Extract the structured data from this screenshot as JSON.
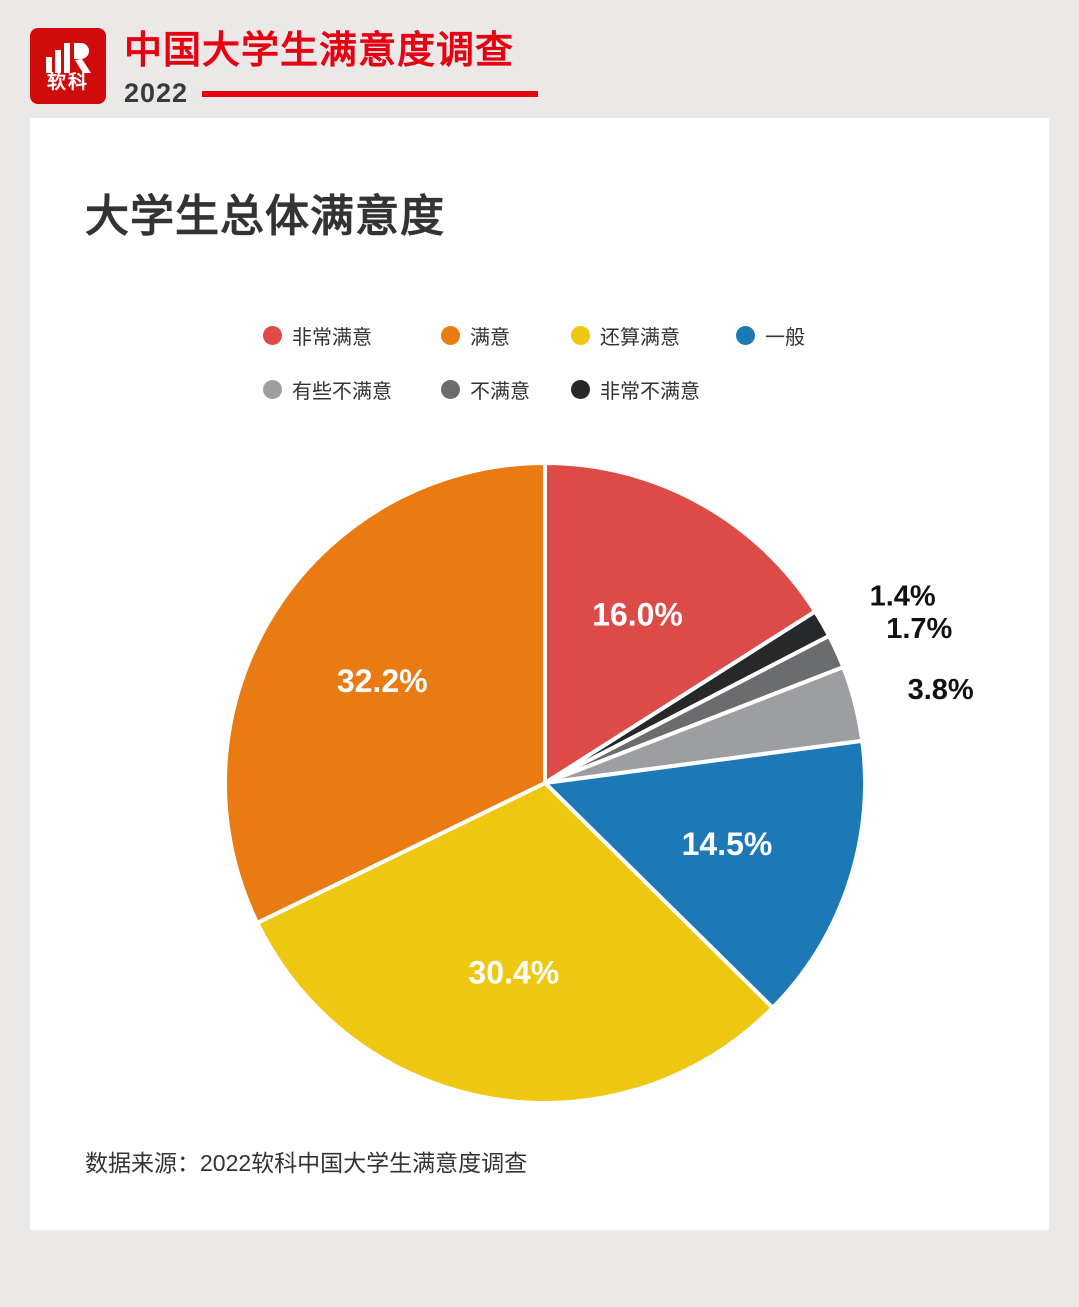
{
  "header": {
    "logo_text": "软科",
    "title": "中国大学生满意度调查",
    "year": "2022"
  },
  "chart_title": "大学生总体满意度",
  "footer": {
    "source": "数据来源：2022软科中国大学生满意度调查"
  },
  "colors": {
    "brand_red": "#e60012",
    "logo_red": "#cf0b0b",
    "page_bg": "#eae9e7",
    "card_bg": "#ffffff",
    "text_dark": "#333333"
  },
  "chart_data": {
    "type": "pie",
    "title": "大学生总体满意度",
    "unit": "%",
    "direction": "clockwise",
    "start_angle": "top",
    "legend_position": "top",
    "slices": [
      {
        "label": "非常满意",
        "value": 16.0,
        "display": "16.0%",
        "color": "#dd4b48",
        "label_placement": "inside"
      },
      {
        "label": "非常不满意",
        "value": 1.4,
        "display": "1.4%",
        "color": "#26282a",
        "label_placement": "outside"
      },
      {
        "label": "不满意",
        "value": 1.7,
        "display": "1.7%",
        "color": "#6b6c6e",
        "label_placement": "outside"
      },
      {
        "label": "有些不满意",
        "value": 3.8,
        "display": "3.8%",
        "color": "#9d9ea1",
        "label_placement": "outside"
      },
      {
        "label": "一般",
        "value": 14.5,
        "display": "14.5%",
        "color": "#1c79b6",
        "label_placement": "inside"
      },
      {
        "label": "还算满意",
        "value": 30.4,
        "display": "30.4%",
        "color": "#eec711",
        "label_placement": "inside"
      },
      {
        "label": "满意",
        "value": 32.2,
        "display": "32.2%",
        "color": "#ea7a12",
        "label_placement": "inside"
      }
    ],
    "legend": [
      {
        "label": "非常满意",
        "color": "#dd4b48"
      },
      {
        "label": "满意",
        "color": "#ea7a12"
      },
      {
        "label": "还算满意",
        "color": "#eec711"
      },
      {
        "label": "一般",
        "color": "#1c79b6"
      },
      {
        "label": "有些不满意",
        "color": "#9d9ea1"
      },
      {
        "label": "不满意",
        "color": "#6b6c6e"
      },
      {
        "label": "非常不满意",
        "color": "#26282a"
      }
    ]
  }
}
